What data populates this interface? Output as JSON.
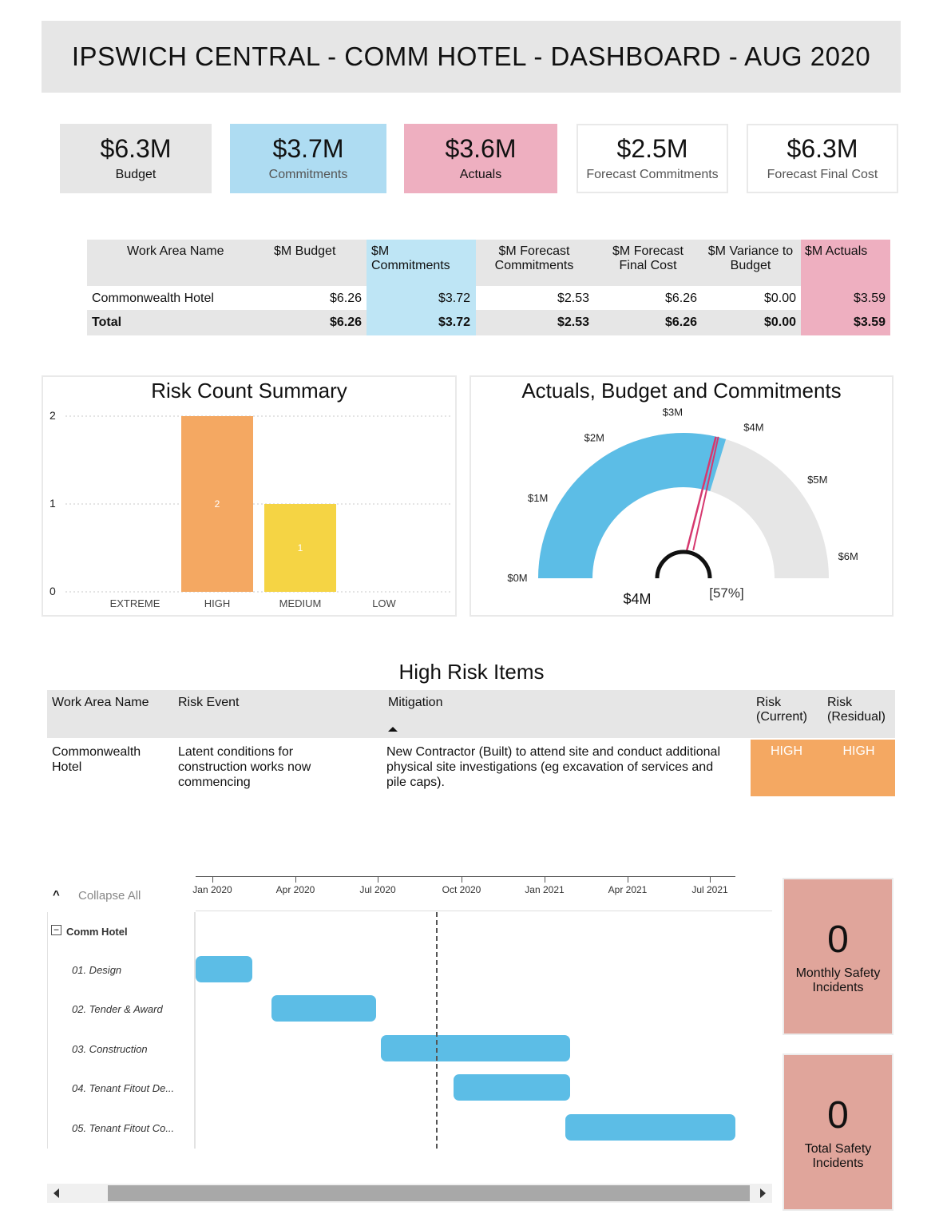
{
  "header": {
    "title": "IPSWICH CENTRAL - COMM HOTEL - DASHBOARD - AUG 2020"
  },
  "kpis": [
    {
      "value": "$6.3M",
      "label": "Budget",
      "color": "#e6e6e6"
    },
    {
      "value": "$3.7M",
      "label": "Commitments",
      "color": "#aedcf2"
    },
    {
      "value": "$3.6M",
      "label": "Actuals",
      "color": "#eeafc0"
    },
    {
      "value": "$2.5M",
      "label": "Forecast Commitments",
      "color": "#ffffff"
    },
    {
      "value": "$6.3M",
      "label": "Forecast Final Cost",
      "color": "#ffffff"
    }
  ],
  "summary_table": {
    "headers": [
      "Work Area Name",
      "$M Budget",
      "$M Commitments",
      "$M Forecast Commitments",
      "$M Forecast Final Cost",
      "$M Variance to Budget",
      "$M Actuals"
    ],
    "rows": [
      [
        "Commonwealth Hotel",
        "$6.26",
        "$3.72",
        "$2.53",
        "$6.26",
        "$0.00",
        "$3.59"
      ]
    ],
    "total": [
      "Total",
      "$6.26",
      "$3.72",
      "$2.53",
      "$6.26",
      "$0.00",
      "$3.59"
    ]
  },
  "risk_chart": {
    "title": "Risk Count Summary",
    "y_ticks": [
      "0",
      "1",
      "2"
    ]
  },
  "gauge": {
    "title": "Actuals, Budget and Commitments",
    "value_label": "$4M",
    "percent_label": "[57%]",
    "tick_labels": [
      "$0M",
      "$1M",
      "$2M",
      "$3M",
      "$4M",
      "$5M",
      "$6M"
    ],
    "min": 0,
    "max": 6.26,
    "value": 3.59,
    "target": 3.72
  },
  "chart_data": [
    {
      "type": "bar",
      "title": "Risk Count Summary",
      "categories": [
        "EXTREME",
        "HIGH",
        "MEDIUM",
        "LOW"
      ],
      "values": [
        0,
        2,
        1,
        0
      ],
      "colors": [
        "#f4a862",
        "#f4a862",
        "#f5d444",
        "#f4a862"
      ],
      "ylim": [
        0,
        2
      ],
      "grid": true
    }
  ],
  "high_risk": {
    "title": "High Risk Items",
    "headers": {
      "work_area": "Work Area Name",
      "risk_event": "Risk Event",
      "mitigation": "Mitigation",
      "risk_current": "Risk (Current)",
      "risk_residual": "Risk (Residual)"
    },
    "row": {
      "work_area": "Commonwealth Hotel",
      "risk_event": "Latent conditions for construction works now commencing",
      "mitigation": "New Contractor (Built) to attend site and conduct additional physical site investigations (eg excavation of services and pile caps).",
      "risk_current": "HIGH",
      "risk_residual": "HIGH",
      "color": "#f4a862"
    }
  },
  "gantt": {
    "collapse_label": "Collapse All",
    "group_label": "Comm Hotel",
    "timeline": [
      "Jan 2020",
      "Apr 2020",
      "Jul 2020",
      "Oct 2020",
      "Jan 2021",
      "Apr 2021",
      "Jul 2021"
    ],
    "tasks": [
      {
        "label": "01. Design"
      },
      {
        "label": "02. Tender & Award"
      },
      {
        "label": "03. Construction"
      },
      {
        "label": "04. Tenant Fitout De..."
      },
      {
        "label": "05. Tenant Fitout Co..."
      }
    ]
  },
  "safety": {
    "monthly": {
      "value": "0",
      "label": "Monthly  Safety Incidents"
    },
    "total": {
      "value": "0",
      "label": "Total Safety Incidents"
    }
  }
}
